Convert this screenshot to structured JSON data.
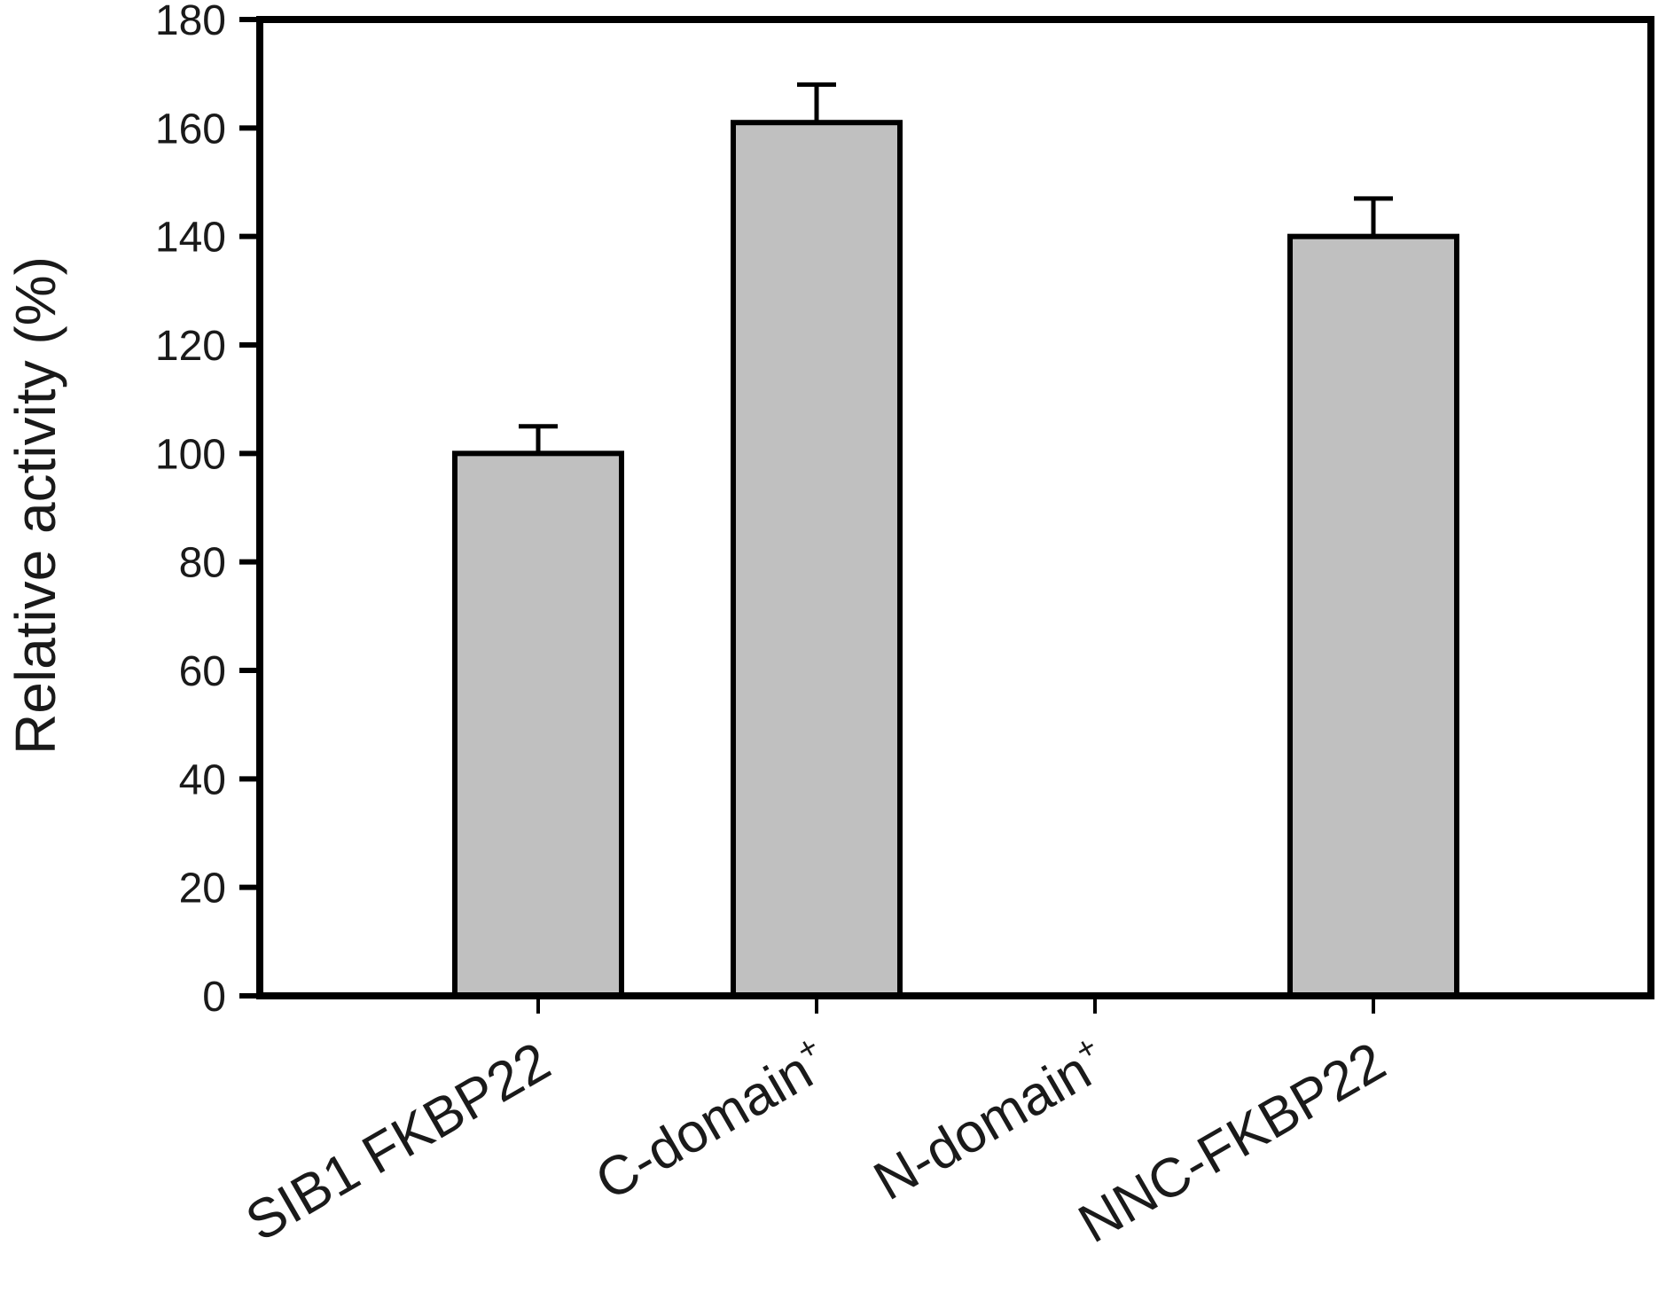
{
  "chart_data": {
    "type": "bar",
    "title": "",
    "xlabel": "",
    "ylabel": "Relative activity (%)",
    "ylim": [
      0,
      180
    ],
    "yticks": [
      0,
      20,
      40,
      60,
      80,
      100,
      120,
      140,
      160,
      180
    ],
    "categories": [
      {
        "label": "SIB1 FKBP22",
        "suffix": ""
      },
      {
        "label": "C-domain",
        "suffix": "+"
      },
      {
        "label": "N-domain",
        "suffix": "+"
      },
      {
        "label": "NNC-FKBP22",
        "suffix": ""
      }
    ],
    "values": [
      100,
      161,
      0,
      140
    ],
    "errors": [
      5,
      7,
      0,
      7
    ],
    "grid": false,
    "bar_color": "#c0c0c0",
    "edge_color": "#000000"
  }
}
